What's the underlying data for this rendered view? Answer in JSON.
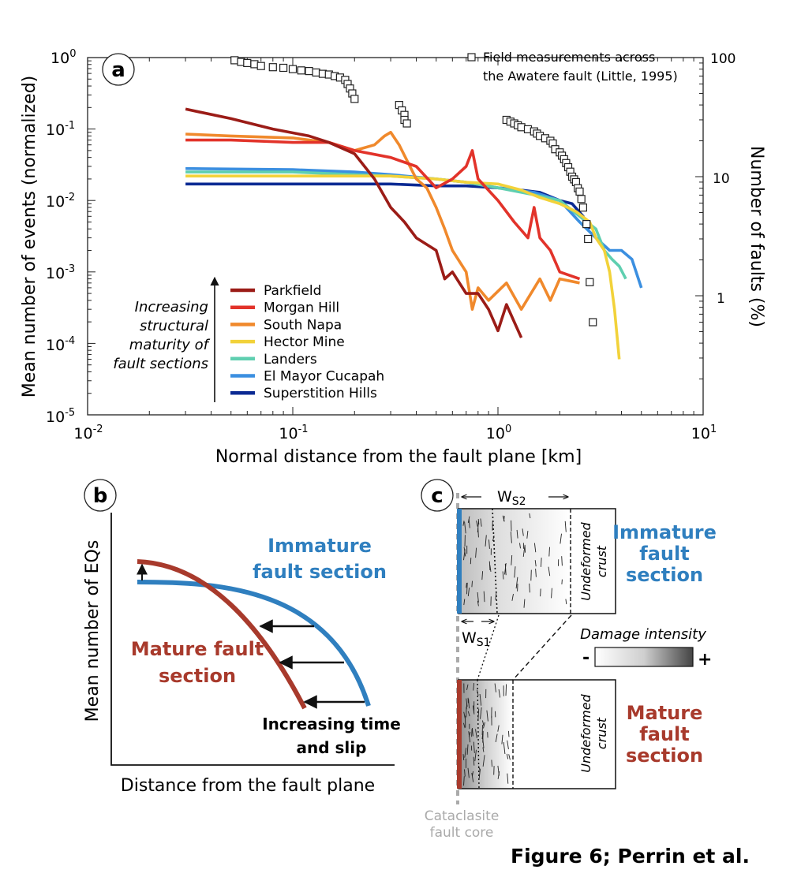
{
  "colors": {
    "Parkfield": "#9b1c17",
    "Morgan Hill": "#e2332a",
    "South Napa": "#f0892c",
    "Hector Mine": "#f2d23a",
    "Landers": "#5fcfb0",
    "El Mayor Cucapah": "#3b8fe0",
    "Superstition Hills": "#0b2a93",
    "field": "#222222",
    "immature": "#2f7fbf",
    "mature": "#a83a2c",
    "core_dash": "#aaaaaa"
  },
  "panel_a": {
    "badge": "a",
    "ylabel": "Mean number of events (normalized)",
    "y2label": "Number of faults (%)",
    "xlabel": "Normal distance from the fault plane [km]",
    "xticks": [
      {
        "b": "10",
        "e": "-2"
      },
      {
        "b": "10",
        "e": "-1"
      },
      {
        "b": "10",
        "e": "0"
      },
      {
        "b": "10",
        "e": "1"
      }
    ],
    "yticks": [
      {
        "b": "10",
        "e": "0"
      },
      {
        "b": "10",
        "e": "-1"
      },
      {
        "b": "10",
        "e": "-2"
      },
      {
        "b": "10",
        "e": "-3"
      },
      {
        "b": "10",
        "e": "-4"
      },
      {
        "b": "10",
        "e": "-5"
      }
    ],
    "y2ticks": [
      "100",
      "10",
      "1"
    ],
    "field_legend_line1": "Field measurements across",
    "field_legend_line2": "the Awatere fault (Little, 1995)",
    "maturity_text": [
      "Increasing",
      "structural",
      "maturity of",
      "fault sections"
    ]
  },
  "chart_data": {
    "type": "line",
    "title": "",
    "xlabel": "Normal distance from the fault plane [km]",
    "ylabel": "Mean number of events (normalized)",
    "y2label": "Number of faults (%)",
    "xscale": "log",
    "yscale": "log",
    "xlim": [
      0.01,
      10
    ],
    "ylim": [
      1e-05,
      1
    ],
    "y2lim": [
      0.1,
      100
    ],
    "legend": "bottom-left",
    "series": [
      {
        "name": "Parkfield",
        "points": [
          [
            0.03,
            0.19
          ],
          [
            0.05,
            0.14
          ],
          [
            0.08,
            0.1
          ],
          [
            0.12,
            0.08
          ],
          [
            0.15,
            0.065
          ],
          [
            0.2,
            0.045
          ],
          [
            0.25,
            0.02
          ],
          [
            0.3,
            0.008
          ],
          [
            0.35,
            0.005
          ],
          [
            0.4,
            0.003
          ],
          [
            0.5,
            0.002
          ],
          [
            0.55,
            0.0008
          ],
          [
            0.6,
            0.001
          ],
          [
            0.7,
            0.0005
          ],
          [
            0.8,
            0.0005
          ],
          [
            0.9,
            0.0003
          ],
          [
            1.0,
            0.00015
          ],
          [
            1.1,
            0.00035
          ],
          [
            1.2,
            0.0002
          ],
          [
            1.3,
            0.00012
          ]
        ]
      },
      {
        "name": "Morgan Hill",
        "points": [
          [
            0.03,
            0.07
          ],
          [
            0.05,
            0.07
          ],
          [
            0.1,
            0.065
          ],
          [
            0.15,
            0.065
          ],
          [
            0.2,
            0.05
          ],
          [
            0.3,
            0.04
          ],
          [
            0.4,
            0.03
          ],
          [
            0.5,
            0.015
          ],
          [
            0.6,
            0.02
          ],
          [
            0.7,
            0.03
          ],
          [
            0.75,
            0.05
          ],
          [
            0.8,
            0.02
          ],
          [
            1.0,
            0.01
          ],
          [
            1.2,
            0.005
          ],
          [
            1.4,
            0.003
          ],
          [
            1.5,
            0.008
          ],
          [
            1.6,
            0.003
          ],
          [
            1.8,
            0.002
          ],
          [
            2.0,
            0.001
          ],
          [
            2.5,
            0.0008
          ]
        ]
      },
      {
        "name": "South Napa",
        "points": [
          [
            0.03,
            0.085
          ],
          [
            0.05,
            0.08
          ],
          [
            0.1,
            0.075
          ],
          [
            0.15,
            0.065
          ],
          [
            0.2,
            0.05
          ],
          [
            0.25,
            0.06
          ],
          [
            0.28,
            0.08
          ],
          [
            0.3,
            0.09
          ],
          [
            0.33,
            0.06
          ],
          [
            0.4,
            0.02
          ],
          [
            0.45,
            0.015
          ],
          [
            0.5,
            0.008
          ],
          [
            0.55,
            0.004
          ],
          [
            0.6,
            0.002
          ],
          [
            0.7,
            0.001
          ],
          [
            0.75,
            0.0003
          ],
          [
            0.8,
            0.0006
          ],
          [
            0.9,
            0.0004
          ],
          [
            1.1,
            0.0007
          ],
          [
            1.3,
            0.0003
          ],
          [
            1.6,
            0.0008
          ],
          [
            1.8,
            0.0004
          ],
          [
            2.0,
            0.0008
          ],
          [
            2.5,
            0.0007
          ]
        ]
      },
      {
        "name": "Hector Mine",
        "points": [
          [
            0.03,
            0.022
          ],
          [
            0.1,
            0.022
          ],
          [
            0.2,
            0.022
          ],
          [
            0.3,
            0.022
          ],
          [
            0.5,
            0.02
          ],
          [
            0.7,
            0.018
          ],
          [
            1.0,
            0.017
          ],
          [
            1.3,
            0.014
          ],
          [
            1.6,
            0.011
          ],
          [
            2.0,
            0.009
          ],
          [
            2.4,
            0.007
          ],
          [
            2.8,
            0.005
          ],
          [
            3.0,
            0.003
          ],
          [
            3.3,
            0.002
          ],
          [
            3.5,
            0.001
          ],
          [
            3.7,
            0.0003
          ],
          [
            3.9,
            6e-05
          ]
        ]
      },
      {
        "name": "Landers",
        "points": [
          [
            0.03,
            0.025
          ],
          [
            0.1,
            0.025
          ],
          [
            0.2,
            0.023
          ],
          [
            0.3,
            0.022
          ],
          [
            0.5,
            0.02
          ],
          [
            0.7,
            0.018
          ],
          [
            1.0,
            0.015
          ],
          [
            1.5,
            0.012
          ],
          [
            2.0,
            0.01
          ],
          [
            2.5,
            0.006
          ],
          [
            3.0,
            0.004
          ],
          [
            3.3,
            0.002
          ],
          [
            3.6,
            0.0015
          ],
          [
            3.9,
            0.0012
          ],
          [
            4.2,
            0.0008
          ]
        ]
      },
      {
        "name": "El Mayor Cucapah",
        "points": [
          [
            0.03,
            0.028
          ],
          [
            0.1,
            0.027
          ],
          [
            0.2,
            0.025
          ],
          [
            0.3,
            0.023
          ],
          [
            0.5,
            0.02
          ],
          [
            0.7,
            0.018
          ],
          [
            1.0,
            0.015
          ],
          [
            1.5,
            0.013
          ],
          [
            2.0,
            0.01
          ],
          [
            2.5,
            0.005
          ],
          [
            3.0,
            0.003
          ],
          [
            3.5,
            0.002
          ],
          [
            4.0,
            0.002
          ],
          [
            4.5,
            0.0015
          ],
          [
            5.0,
            0.0006
          ]
        ]
      },
      {
        "name": "Superstition Hills",
        "points": [
          [
            0.03,
            0.017
          ],
          [
            0.1,
            0.017
          ],
          [
            0.2,
            0.017
          ],
          [
            0.3,
            0.017
          ],
          [
            0.5,
            0.016
          ],
          [
            0.7,
            0.016
          ],
          [
            1.0,
            0.015
          ],
          [
            1.3,
            0.014
          ],
          [
            1.6,
            0.013
          ],
          [
            2.0,
            0.01
          ],
          [
            2.3,
            0.009
          ],
          [
            2.6,
            0.006
          ],
          [
            2.8,
            0.004
          ]
        ]
      }
    ],
    "field_measurements": {
      "name": "Field measurements across the Awatere fault (Little, 1995)",
      "axis": "right",
      "points": [
        [
          0.052,
          95
        ],
        [
          0.056,
          92
        ],
        [
          0.06,
          90
        ],
        [
          0.065,
          88
        ],
        [
          0.07,
          85
        ],
        [
          0.08,
          83
        ],
        [
          0.09,
          82
        ],
        [
          0.1,
          80
        ],
        [
          0.11,
          78
        ],
        [
          0.12,
          77
        ],
        [
          0.13,
          75
        ],
        [
          0.14,
          73
        ],
        [
          0.15,
          72
        ],
        [
          0.16,
          70
        ],
        [
          0.17,
          68
        ],
        [
          0.18,
          65
        ],
        [
          0.185,
          60
        ],
        [
          0.19,
          55
        ],
        [
          0.195,
          50
        ],
        [
          0.2,
          45
        ],
        [
          0.33,
          40
        ],
        [
          0.34,
          36
        ],
        [
          0.35,
          33
        ],
        [
          0.35,
          30
        ],
        [
          0.36,
          28
        ],
        [
          1.1,
          30
        ],
        [
          1.15,
          29
        ],
        [
          1.2,
          28
        ],
        [
          1.25,
          27
        ],
        [
          1.3,
          26
        ],
        [
          1.4,
          25
        ],
        [
          1.5,
          24
        ],
        [
          1.55,
          23
        ],
        [
          1.6,
          22
        ],
        [
          1.7,
          21
        ],
        [
          1.8,
          20
        ],
        [
          1.85,
          19
        ],
        [
          1.9,
          17
        ],
        [
          2.0,
          16
        ],
        [
          2.05,
          15
        ],
        [
          2.1,
          14
        ],
        [
          2.15,
          13
        ],
        [
          2.2,
          12
        ],
        [
          2.25,
          11
        ],
        [
          2.3,
          10
        ],
        [
          2.35,
          9.5
        ],
        [
          2.4,
          9
        ],
        [
          2.45,
          8
        ],
        [
          2.5,
          7.5
        ],
        [
          2.55,
          6.5
        ],
        [
          2.6,
          5.5
        ],
        [
          2.7,
          4
        ],
        [
          2.75,
          3
        ],
        [
          2.8,
          1.3
        ],
        [
          2.9,
          0.6
        ]
      ]
    }
  },
  "panel_b": {
    "badge": "b",
    "ylabel": "Mean number of EQs",
    "xlabel": "Distance from the fault plane",
    "immature_label": [
      "Immature",
      "fault section"
    ],
    "mature_label": [
      "Mature fault",
      "section"
    ],
    "arrow_label": [
      "Increasing time",
      "and slip"
    ]
  },
  "panel_c": {
    "badge": "c",
    "ws2_base": "W",
    "ws2_sub": "S2",
    "ws1_base": "W",
    "ws1_sub": "S1",
    "undeformed": [
      "Undeformed",
      "crust"
    ],
    "immature_label": [
      "Immature",
      "fault",
      "section"
    ],
    "mature_label": [
      "Mature",
      "fault",
      "section"
    ],
    "damage_label": "Damage intensity",
    "minus": "-",
    "plus": "+",
    "core_label": [
      "Cataclasite",
      "fault core"
    ]
  },
  "figure_caption": "Figure 6; Perrin et al."
}
